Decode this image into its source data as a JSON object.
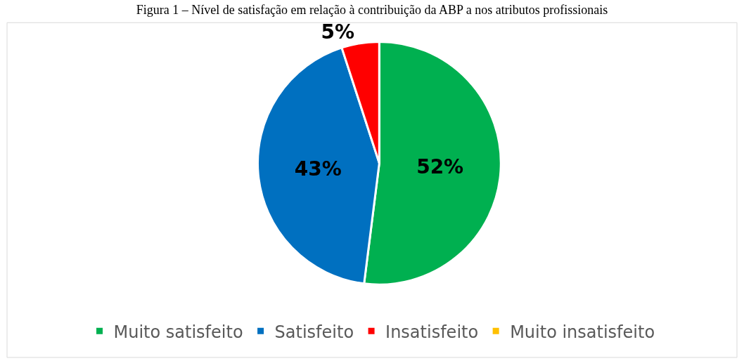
{
  "chart_data": {
    "type": "pie",
    "title": "Figura 1 – Nível de satisfação em relação à contribuição da ABP a nos atributos profissionais",
    "categories": [
      "Muito satisfeito",
      "Satisfeito",
      "Insatisfeito",
      "Muito insatisfeito"
    ],
    "values": [
      52,
      43,
      5,
      0
    ],
    "colors": [
      "#00b050",
      "#0070c0",
      "#ff0000",
      "#ffc000"
    ],
    "value_labels": [
      "52%",
      "43%",
      "5%",
      null
    ],
    "legend": "bottom"
  }
}
